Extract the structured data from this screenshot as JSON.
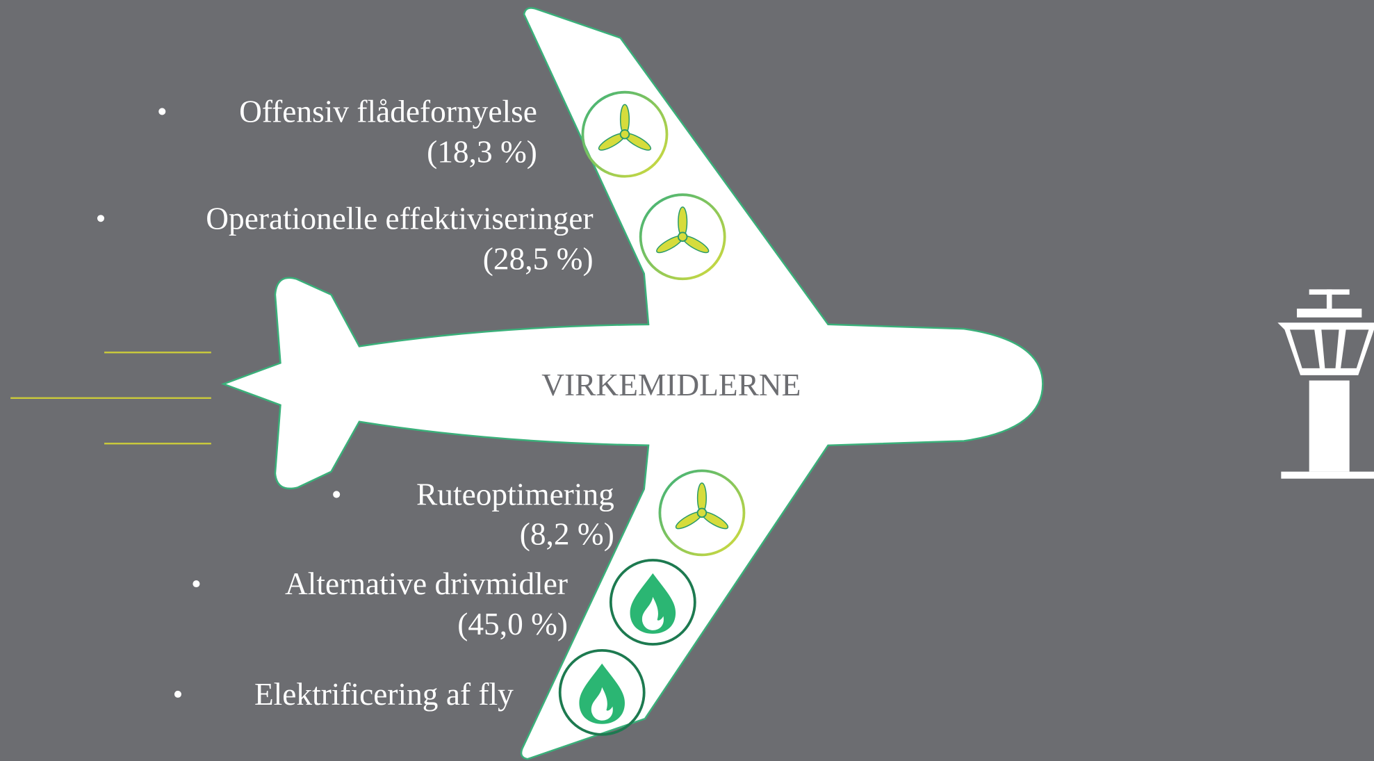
{
  "title": "VIRKEMIDLERNE",
  "items": [
    {
      "label": "Offensiv flådefornyelse",
      "share": "(18,3 %)"
    },
    {
      "label": "Operationelle effektiviseringer",
      "share": "(28,5 %)"
    },
    {
      "label": "Ruteoptimering",
      "share": "(8,2 %)"
    },
    {
      "label": "Alternative drivmidler",
      "share": "(45,0 %)"
    },
    {
      "label": "Elektrificering af fly"
    }
  ]
}
